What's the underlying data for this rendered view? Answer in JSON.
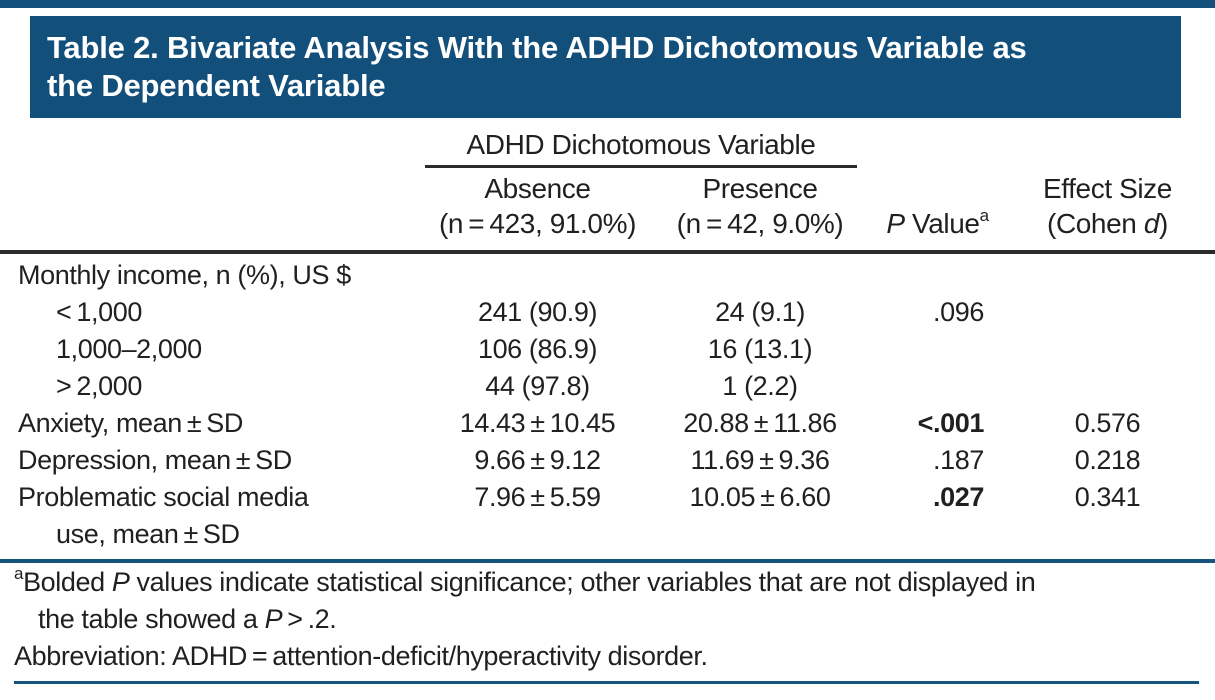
{
  "colors": {
    "banner": "#134f7b",
    "rule_blue": "#165480",
    "rule_dark": "#2b2b2b",
    "text": "#221f1f"
  },
  "title": {
    "line1": "Table 2. Bivariate Analysis With the ADHD Dichotomous Variable as",
    "line2": "the Dependent Variable"
  },
  "header": {
    "spanner": "ADHD Dichotomous Variable",
    "absence_top": "Absence",
    "absence_bottom": "(n = 423, 91.0%)",
    "presence_top": "Presence",
    "presence_bottom": "(n = 42, 9.0%)",
    "p_italic": "P",
    "p_rest": " Value",
    "p_sup": "a",
    "effect_top": "Effect Size",
    "effect_pre": "(Cohen ",
    "effect_d": "d",
    "effect_post": ")"
  },
  "rows": [
    {
      "label": "Monthly income, n (%), US $",
      "absence": "",
      "presence": "",
      "p": "",
      "effect": ""
    },
    {
      "label": "< 1,000",
      "absence": "241 (90.9)",
      "presence": "24 (9.1)",
      "p": ".096",
      "effect": ""
    },
    {
      "label": "1,000–2,000",
      "absence": "106 (86.9)",
      "presence": "16 (13.1)",
      "p": "",
      "effect": ""
    },
    {
      "label": "> 2,000",
      "absence": "44 (97.8)",
      "presence": "1 (2.2)",
      "p": "",
      "effect": ""
    },
    {
      "label": "Anxiety, mean ± SD",
      "absence": "14.43 ± 10.45",
      "presence": "20.88 ± 11.86",
      "p": "<.001",
      "effect": "0.576"
    },
    {
      "label": "Depression, mean ± SD",
      "absence": "9.66 ± 9.12",
      "presence": "11.69 ± 9.36",
      "p": ".187",
      "effect": "0.218"
    },
    {
      "label": "Problematic social media",
      "label2": "use, mean ± SD",
      "absence": "7.96 ± 5.59",
      "presence": "10.05 ± 6.60",
      "p": ".027",
      "effect": "0.341"
    }
  ],
  "footnotes": {
    "marker": "a",
    "line1_pre": "Bolded ",
    "line1_italic": "P",
    "line1_post": " values indicate statistical significance; other variables that are not displayed in",
    "line2_pre": "the table showed a ",
    "line2_italic": "P",
    "line2_post": " > .2.",
    "abbreviation": "Abbreviation: ADHD = attention-deficit/hyperactivity disorder."
  }
}
